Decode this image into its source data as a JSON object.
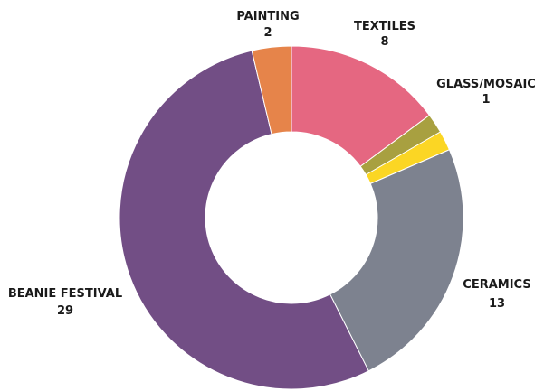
{
  "chart_data": {
    "type": "pie",
    "donut": true,
    "slices": [
      {
        "label": "TEXTILES",
        "value": 8,
        "color": "#E56781"
      },
      {
        "label": "GLASS/MOSAIC",
        "value": 1,
        "color": "#A8A040"
      },
      {
        "label": "",
        "value": 1,
        "color": "#FBD624"
      },
      {
        "label": "CERAMICS",
        "value": 13,
        "color": "#7D828F"
      },
      {
        "label": "BEANIE FESTIVAL",
        "value": 29,
        "color": "#724E85"
      },
      {
        "label": "PAINTING",
        "value": 2,
        "color": "#E6844A"
      }
    ]
  }
}
